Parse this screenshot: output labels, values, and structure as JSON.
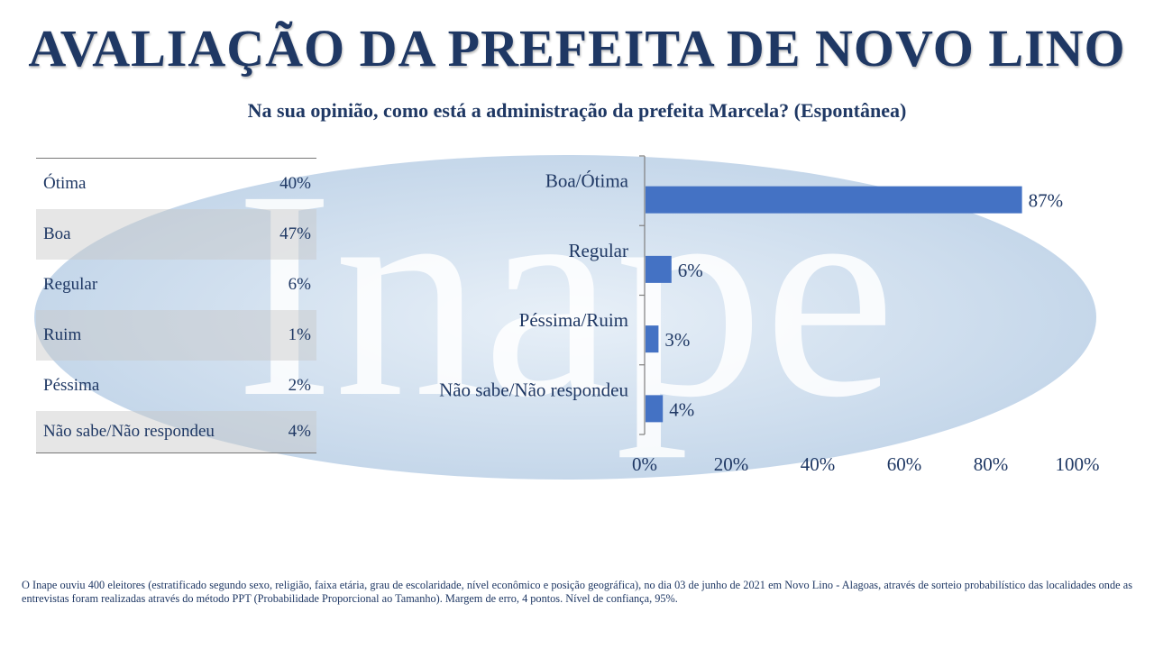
{
  "header": {
    "title": "AVALIAÇÃO DA PREFEITA DE NOVO LINO",
    "subtitle": "Na sua opinião, como está a administração da prefeita Marcela? (Espontânea)"
  },
  "watermark": {
    "text": "Inape",
    "color": "#cfdfee"
  },
  "breakdown_table": {
    "rows": [
      {
        "label": "Ótima",
        "value": "40%"
      },
      {
        "label": "Boa",
        "value": "47%"
      },
      {
        "label": "Regular",
        "value": "6%"
      },
      {
        "label": "Ruim",
        "value": "1%"
      },
      {
        "label": "Péssima",
        "value": "2%"
      },
      {
        "label": "Não sabe/Não respondeu",
        "value": "4%"
      }
    ]
  },
  "chart_data": {
    "type": "bar",
    "orientation": "horizontal",
    "categories": [
      "Boa/Ótima",
      "Regular",
      "Péssima/Ruim",
      "Não sabe/Não respondeu"
    ],
    "values": [
      87,
      6,
      3,
      4
    ],
    "data_labels": [
      "87%",
      "6%",
      "3%",
      "4%"
    ],
    "xlim": [
      0,
      100
    ],
    "x_ticks": [
      "0%",
      "20%",
      "40%",
      "60%",
      "80%",
      "100%"
    ],
    "bar_color": "#4472c4",
    "grid": false,
    "legend": "none"
  },
  "footnote": "O Inape ouviu 400 eleitores (estratificado segundo sexo, religião, faixa etária, grau de escolaridade, nível econômico e posição geográfica), no dia 03 de junho de 2021 em Novo Lino - Alagoas, através de sorteio probabilístico das localidades onde as entrevistas foram realizadas através do método PPT (Probabilidade Proporcional ao Tamanho). Margem de erro, 4 pontos. Nível de confiança, 95%."
}
